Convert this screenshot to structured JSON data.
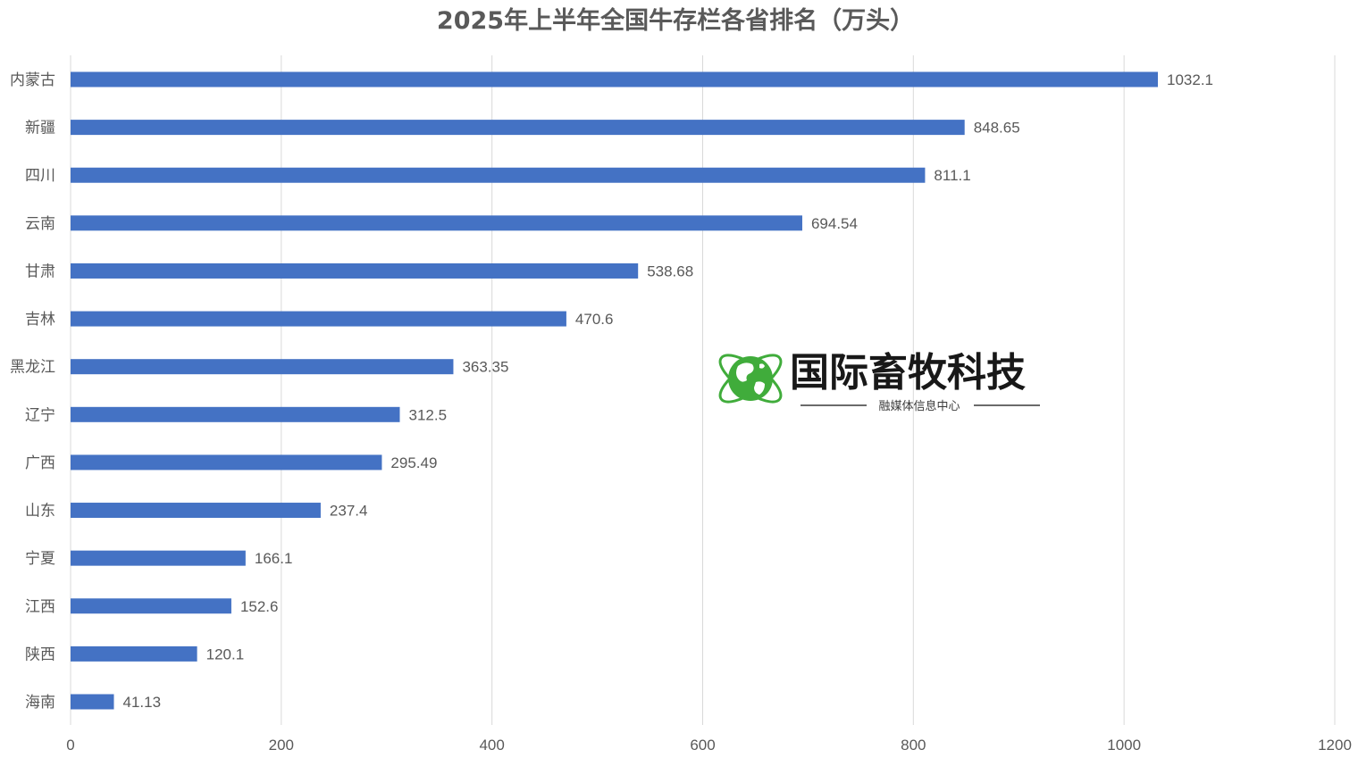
{
  "chart_data": {
    "type": "bar",
    "orientation": "horizontal",
    "title": "2025年上半年全国牛存栏各省排名（万头）",
    "categories": [
      "内蒙古",
      "新疆",
      "四川",
      "云南",
      "甘肃",
      "吉林",
      "黑龙江",
      "辽宁",
      "广西",
      "山东",
      "宁夏",
      "江西",
      "陕西",
      "海南"
    ],
    "values": [
      1032.1,
      848.65,
      811.1,
      694.54,
      538.68,
      470.6,
      363.35,
      312.5,
      295.49,
      237.4,
      166.1,
      152.6,
      120.1,
      41.13
    ],
    "data_labels": [
      "1032.1",
      "848.65",
      "811.1",
      "694.54",
      "538.68",
      "470.6",
      "363.35",
      "312.5",
      "295.49",
      "237.4",
      "166.1",
      "152.6",
      "120.1",
      "41.13"
    ],
    "xlim": [
      0,
      1200
    ],
    "x_ticks": [
      "0",
      "200",
      "400",
      "600",
      "800",
      "1000",
      "1200"
    ],
    "grid": "vertical",
    "bar_color": "#4472c4",
    "legend": "none"
  },
  "watermark": {
    "title": "国际畜牧科技",
    "subtitle": "融媒体信息中心",
    "icon": "globe-icon",
    "colors": {
      "green": "#3aaa35",
      "dark": "#1e5f2a"
    }
  }
}
